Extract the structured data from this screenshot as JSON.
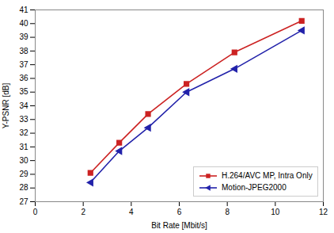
{
  "chart_data": {
    "type": "line",
    "xlabel": "Bit Rate [Mbit/s]",
    "ylabel": "Y-PSNR [dB]",
    "x": [
      2.3,
      3.5,
      4.7,
      6.3,
      8.3,
      11.1
    ],
    "series": [
      {
        "name": "H.264/AVC MP, Intra Only",
        "color": "#cc2222",
        "marker": "square",
        "line_style": "solid",
        "values": [
          29.1,
          31.3,
          33.4,
          35.6,
          37.9,
          40.2
        ]
      },
      {
        "name": "Motion-JPEG2000",
        "color": "#2222aa",
        "marker": "triangle-left",
        "line_style": "solid",
        "values": [
          28.4,
          30.7,
          32.4,
          35.0,
          36.7,
          39.5
        ]
      }
    ],
    "xlim": [
      0,
      12
    ],
    "ylim": [
      27,
      41
    ],
    "xticks": [
      0,
      2,
      4,
      6,
      8,
      10,
      12
    ],
    "yticks": [
      27,
      28,
      29,
      30,
      31,
      32,
      33,
      34,
      35,
      36,
      37,
      38,
      39,
      40,
      41
    ],
    "grid": false,
    "legend": "lower right"
  }
}
